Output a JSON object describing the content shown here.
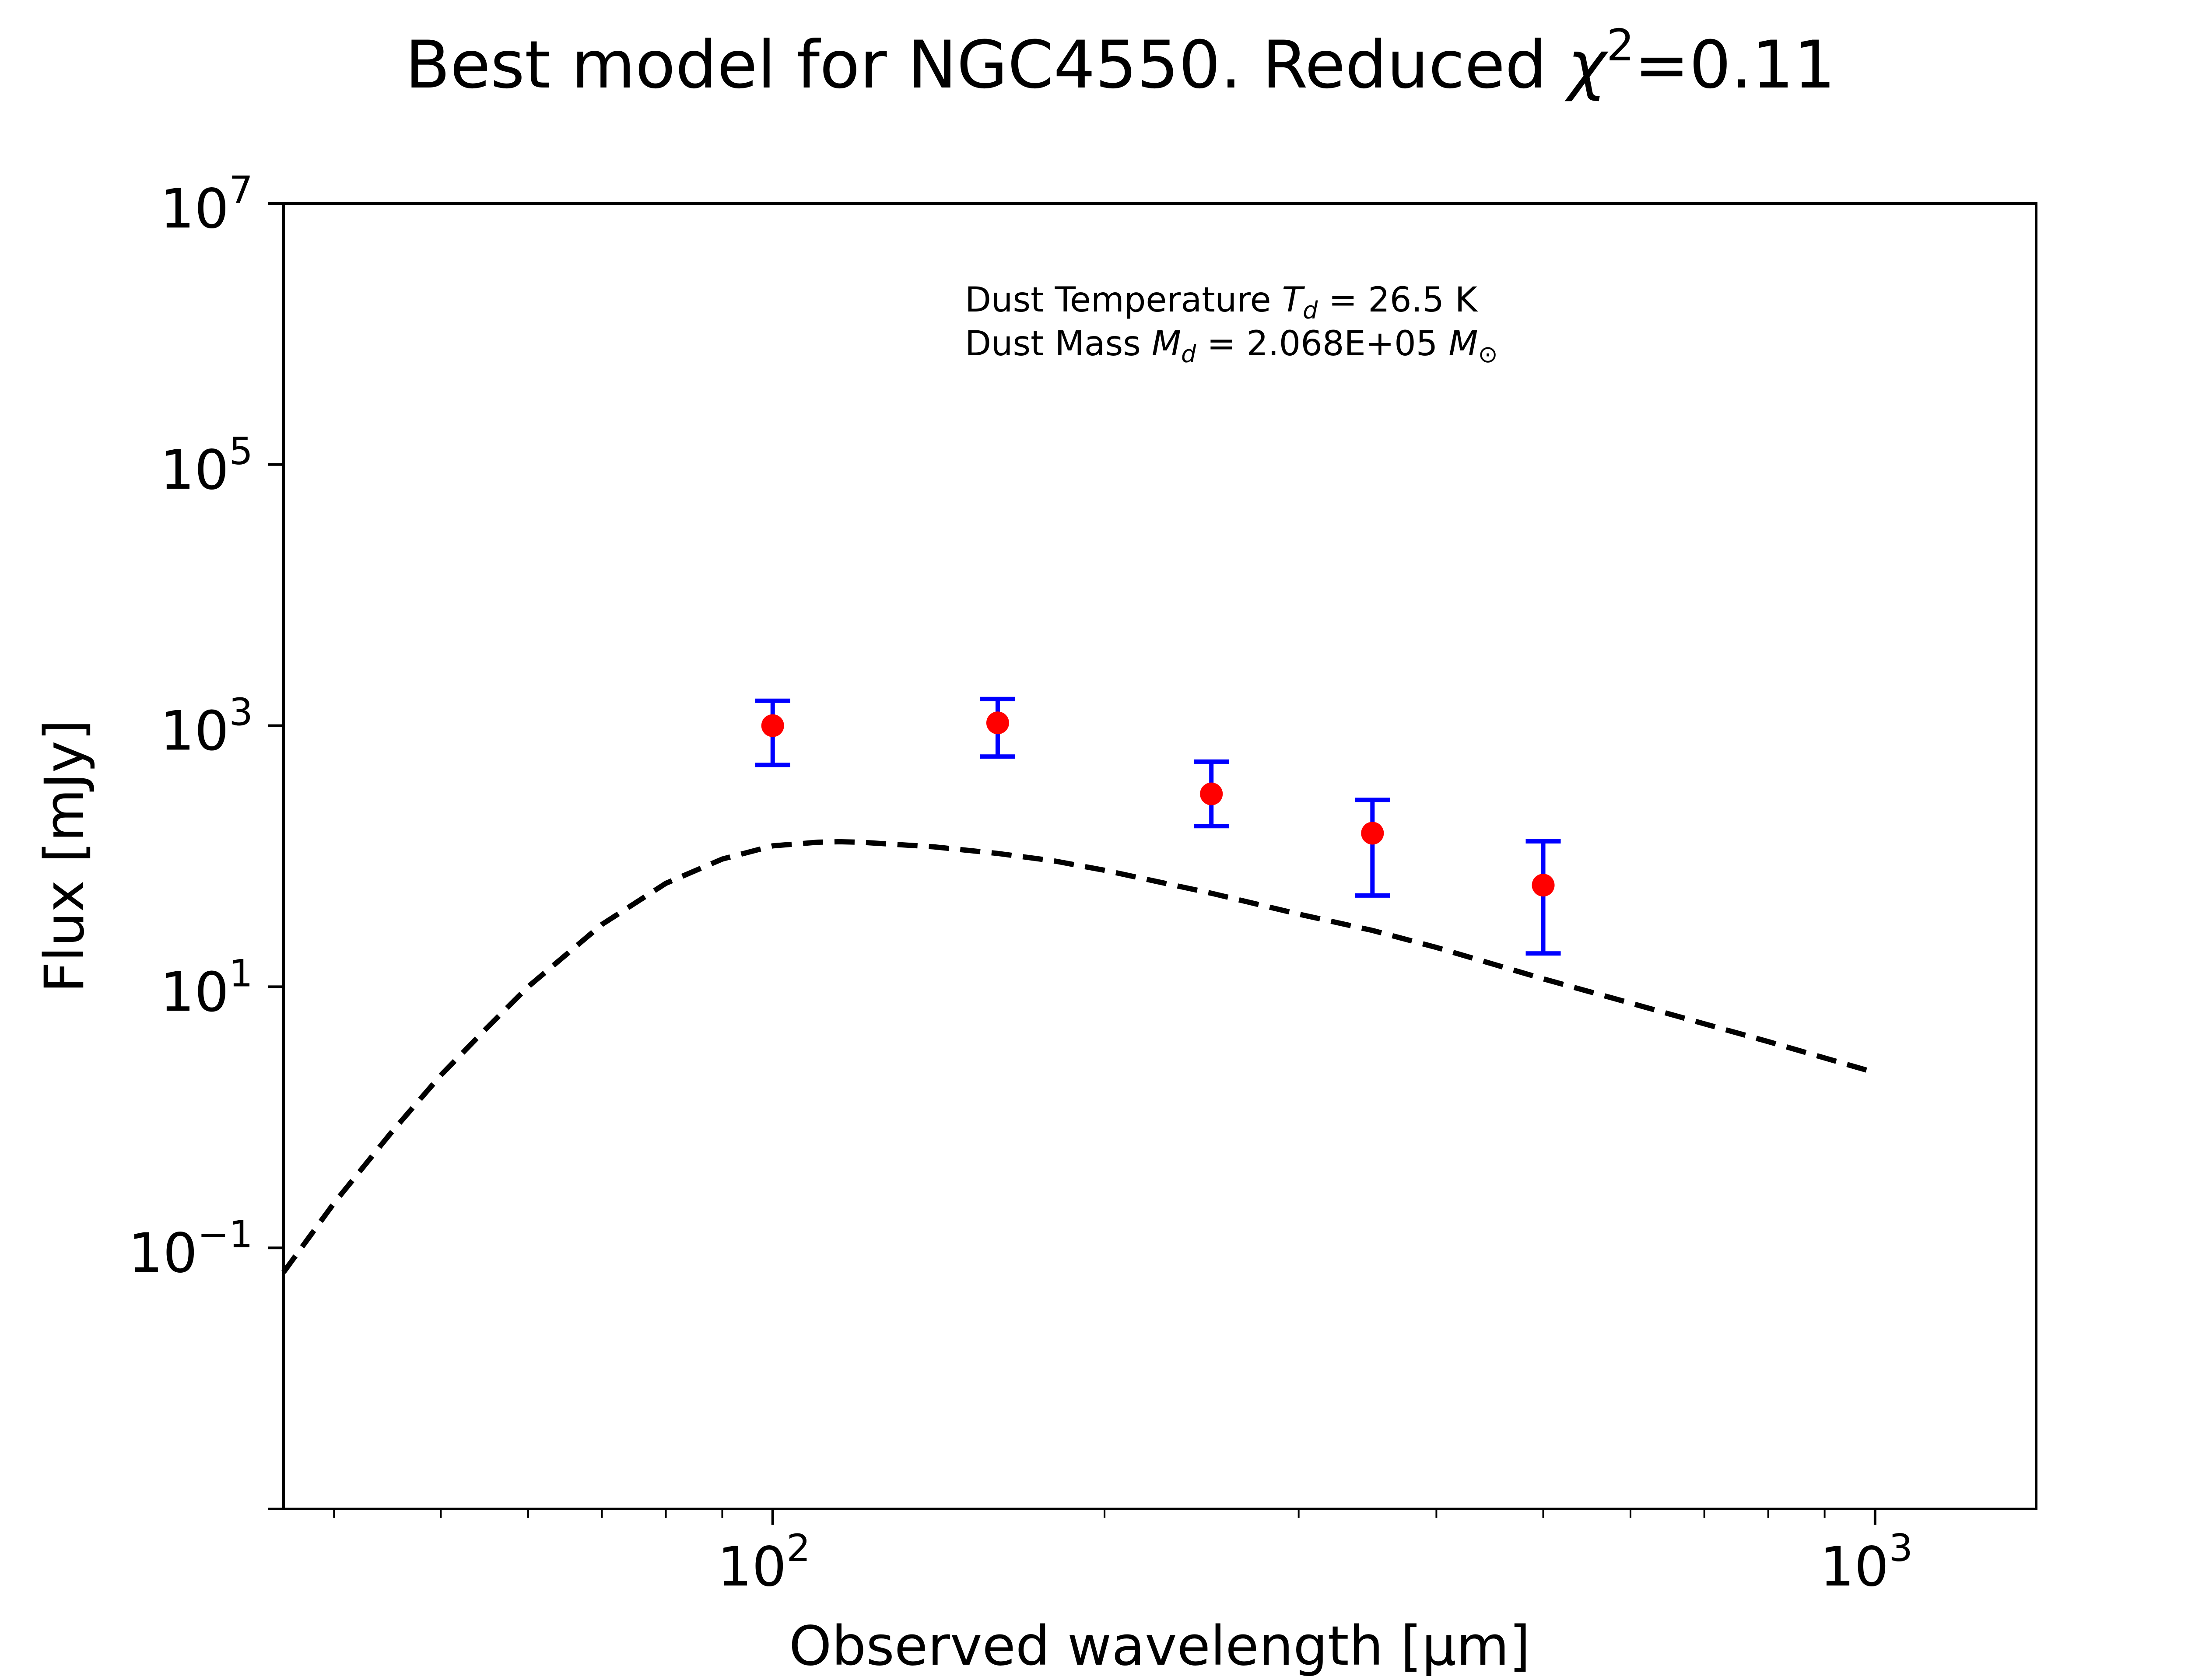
{
  "chart_data": {
    "type": "scatter",
    "title_main": "Best model for NGC4550. Reduced ",
    "title_chi": "χ",
    "title_sup": "2",
    "title_value": "=0.11",
    "xlabel": "Observed wavelength [μm]",
    "ylabel": "Flux [mJy]",
    "x_scale": "log",
    "y_scale": "log",
    "xlim": [
      36,
      1400
    ],
    "ylim": [
      0.001,
      10000000
    ],
    "x_ticks": [
      {
        "value": 100,
        "base": "10",
        "exp": "2"
      },
      {
        "value": 1000,
        "base": "10",
        "exp": "3"
      }
    ],
    "y_ticks": [
      {
        "value": 0.1,
        "base": "10",
        "exp": "−1"
      },
      {
        "value": 10,
        "base": "10",
        "exp": "1"
      },
      {
        "value": 1000,
        "base": "10",
        "exp": "3"
      },
      {
        "value": 100000,
        "base": "10",
        "exp": "5"
      },
      {
        "value": 10000000,
        "base": "10",
        "exp": "7"
      }
    ],
    "grid": false,
    "model_curve": {
      "style": "dashed",
      "color": "#000000",
      "x": [
        36,
        40,
        45,
        50,
        55,
        60,
        70,
        80,
        90,
        100,
        110,
        115,
        120,
        140,
        160,
        180,
        200,
        250,
        300,
        350,
        400,
        500,
        600,
        700,
        800,
        1000
      ],
      "y": [
        0.065,
        0.22,
        0.75,
        2.1,
        4.8,
        10,
        30,
        62,
        95,
        120,
        128,
        129,
        128,
        118,
        105,
        92,
        78,
        52,
        36,
        27,
        20,
        11.5,
        7.5,
        5.2,
        3.8,
        2.2
      ]
    },
    "series": [
      {
        "x": [
          100,
          160,
          250,
          350,
          500
        ],
        "y": [
          1000,
          1050,
          300,
          150,
          60
        ],
        "yerr_low": [
          500,
          580,
          170,
          50,
          18
        ],
        "yerr_high": [
          1550,
          1600,
          530,
          270,
          130
        ],
        "marker_color": "#ff0000",
        "errorbar_color": "#0000ff"
      }
    ],
    "annotation": {
      "line1_prefix": "Dust Temperature ",
      "line1_var": "T",
      "line1_sub": "d",
      "line1_value": " = 26.5 K",
      "line2_prefix": "Dust Mass ",
      "line2_var": "M",
      "line2_sub": "d",
      "line2_value": " = 2.068E+05 ",
      "line2_unit_var": "M",
      "line2_unit_sub": "⊙"
    }
  }
}
